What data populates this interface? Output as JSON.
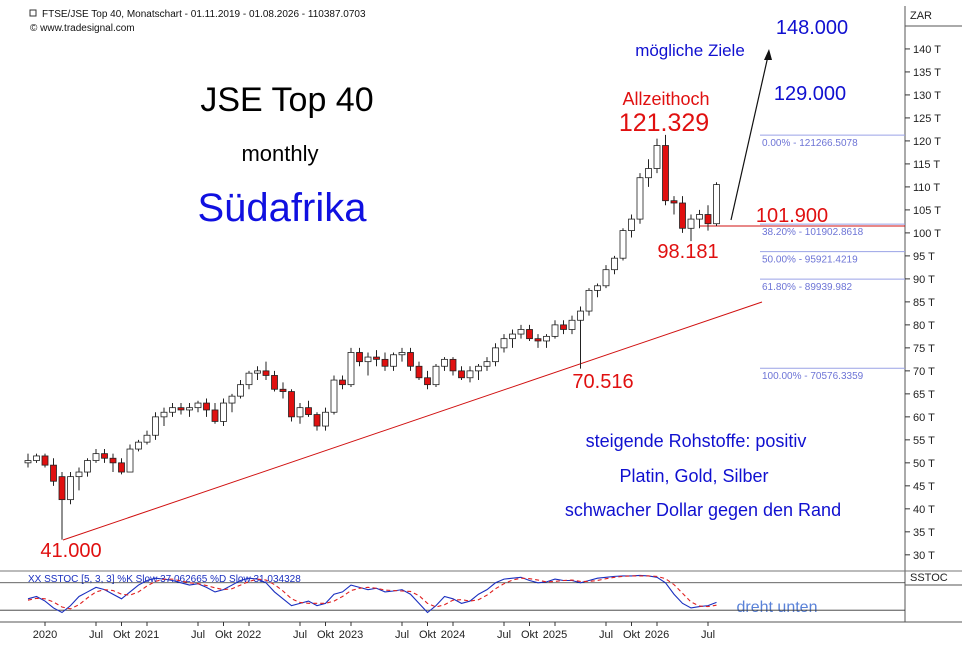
{
  "chart_data": {
    "type": "candlestick",
    "title": "FTSE/JSE Top 40, Monatschart - 01.11.2019 - 01.08.2026 - 110387.0703",
    "source": "© www.tradesignal.com",
    "y_axis_label": "ZAR",
    "categories": [
      null,
      null,
      "2020",
      null,
      null,
      null,
      null,
      null,
      "Jul",
      null,
      null,
      "Okt",
      null,
      null,
      "2021",
      null,
      null,
      null,
      null,
      null,
      "Jul",
      null,
      null,
      "Okt",
      null,
      null,
      "2022",
      null,
      null,
      null,
      null,
      null,
      "Jul",
      null,
      null,
      "Okt",
      null,
      null,
      "2023",
      null,
      null,
      null,
      null,
      null,
      "Jul",
      null,
      null,
      "Okt",
      null,
      null,
      "2024",
      null,
      null,
      null,
      null,
      null,
      "Jul",
      null,
      null,
      "Okt",
      null,
      null,
      "2025",
      null,
      null,
      null,
      null,
      null,
      "Jul",
      null,
      null,
      "Okt",
      null,
      null,
      "2026",
      null,
      null,
      null,
      null,
      null,
      "Jul",
      null
    ],
    "open": [
      50,
      50.5,
      51.5,
      49.5,
      47,
      42,
      47,
      48,
      50.5,
      52,
      51,
      50,
      48,
      53,
      54.5,
      56,
      60,
      61,
      62,
      61.5,
      62,
      63,
      61.5,
      59,
      63,
      64.5,
      67,
      69.5,
      70,
      69,
      66,
      65.5,
      60,
      62,
      60.5,
      58,
      61,
      68,
      67,
      74,
      72,
      73,
      72.5,
      71,
      73.5,
      74,
      71,
      68.5,
      67,
      71,
      72.5,
      70,
      68.5,
      70,
      71,
      72,
      75,
      77,
      78,
      79,
      77,
      76.5,
      77.5,
      80,
      79,
      81,
      83,
      87.5,
      88.5,
      92,
      94.5,
      100.5,
      103,
      112,
      114,
      119,
      107,
      106.5,
      101,
      103,
      104,
      102
    ],
    "high": [
      52,
      52,
      52,
      51,
      48,
      48,
      49,
      51,
      53,
      53,
      52,
      51,
      54,
      55,
      57,
      61,
      62,
      63,
      63,
      63,
      63.5,
      64,
      63,
      64,
      65,
      68,
      70,
      71,
      72,
      70,
      67.5,
      66,
      63,
      63.5,
      61,
      62,
      69,
      69,
      75,
      75,
      74,
      74.5,
      74,
      74,
      75,
      75,
      72,
      70,
      71.5,
      73,
      73,
      71,
      71,
      71.5,
      73,
      76,
      78,
      79,
      80,
      80,
      78,
      78,
      81,
      81,
      82,
      84,
      88,
      89,
      93,
      95,
      101,
      104,
      113,
      116,
      120.5,
      121.3,
      108,
      108,
      104,
      105,
      106,
      111
    ],
    "low": [
      49,
      50,
      49,
      45,
      33.3,
      41,
      44,
      47,
      50,
      50,
      48,
      47.5,
      48,
      52.5,
      54,
      55,
      58,
      60,
      60.5,
      60,
      61,
      60,
      58.5,
      58,
      61,
      64,
      66,
      68,
      68,
      65.5,
      64,
      59,
      58.5,
      60,
      57,
      57,
      60.5,
      66,
      66.5,
      71,
      69,
      71,
      70,
      70,
      72,
      70,
      68,
      66,
      66.5,
      70,
      69,
      68,
      67.5,
      68,
      70,
      71,
      74,
      75,
      77,
      76.5,
      75,
      75,
      77,
      78,
      78,
      70.5,
      82,
      86,
      88,
      91,
      94,
      99,
      102,
      110,
      113,
      106,
      104,
      100,
      98.2,
      101,
      100.5,
      101.5
    ],
    "close": [
      50.5,
      51.5,
      49.5,
      46,
      42,
      47,
      48,
      50.5,
      52,
      51,
      50,
      48,
      53,
      54.5,
      56,
      60,
      61,
      62,
      61.5,
      62,
      63,
      61.5,
      59,
      63,
      64.5,
      67,
      69.5,
      70,
      69,
      66,
      65.5,
      60,
      62,
      60.5,
      58,
      61,
      68,
      67,
      74,
      72,
      73,
      72.5,
      71,
      73.5,
      74,
      71,
      68.5,
      67,
      71,
      72.5,
      70,
      68.5,
      70,
      71,
      72,
      75,
      77,
      78,
      79,
      77,
      76.5,
      77.5,
      80,
      79,
      81,
      83,
      87.5,
      88.5,
      92,
      94.5,
      100.5,
      103,
      112,
      114,
      119,
      107,
      106.5,
      101,
      103,
      104,
      102,
      110.5
    ],
    "up_color": "#ffffff",
    "down_color": "#e01010",
    "ylim": [
      26.7,
      148.9
    ],
    "yticks": [
      {
        "value": 30,
        "label": "30 T"
      },
      {
        "value": 35,
        "label": "35 T"
      },
      {
        "value": 40,
        "label": "40 T"
      },
      {
        "value": 45,
        "label": "45 T"
      },
      {
        "value": 50,
        "label": "50 T"
      },
      {
        "value": 55,
        "label": "55 T"
      },
      {
        "value": 60,
        "label": "60 T"
      },
      {
        "value": 65,
        "label": "65 T"
      },
      {
        "value": 70,
        "label": "70 T"
      },
      {
        "value": 75,
        "label": "75 T"
      },
      {
        "value": 80,
        "label": "80 T"
      },
      {
        "value": 85,
        "label": "85 T"
      },
      {
        "value": 90,
        "label": "90 T"
      },
      {
        "value": 95,
        "label": "95 T"
      },
      {
        "value": 100,
        "label": "100 T"
      },
      {
        "value": 105,
        "label": "105 T"
      },
      {
        "value": 110,
        "label": "110 T"
      },
      {
        "value": 115,
        "label": "115 T"
      },
      {
        "value": 120,
        "label": "120 T"
      },
      {
        "value": 125,
        "label": "125 T"
      },
      {
        "value": 130,
        "label": "130 T"
      },
      {
        "value": 135,
        "label": "135 T"
      },
      {
        "value": 140,
        "label": "140 T"
      }
    ],
    "fibonacci": [
      {
        "value": 121.2665078,
        "label": "0.00% - 121266.5078"
      },
      {
        "value": 101.9028618,
        "label": "38.20% - 101902.8618"
      },
      {
        "value": 95.9214219,
        "label": "50.00% - 95921.4219"
      },
      {
        "value": 89.939982,
        "label": "61.80% - 89939.982"
      },
      {
        "value": 70.5763359,
        "label": "100.00% - 70576.3359"
      }
    ],
    "fib_color": "#9aa2e6",
    "annotations": [
      "JSE Top 40",
      "monthly",
      "Südafrika",
      "mögliche Ziele",
      "148.000",
      "129.000",
      "Allzeithoch",
      "121.329",
      "101.900",
      "98.181",
      "70.516",
      "41.000",
      "steigende Rohstoffe: positiv",
      "Platin, Gold, Silber",
      "schwacher Dollar gegen den Rand",
      "dreht unten"
    ],
    "stochastic": {
      "title": "XX SSTOC [5, 3, 3] %K Slow 37.062665 %D Slow 31.034328",
      "axis_label": "SSTOC",
      "ylim": [
        -3.6,
        101.4
      ],
      "levels": [
        20,
        80
      ],
      "series": [
        {
          "color": "#1a2fbf",
          "dashed": false,
          "values": [
            45,
            50,
            40,
            25,
            15,
            30,
            50,
            60,
            70,
            65,
            55,
            45,
            60,
            75,
            85,
            90,
            88,
            85,
            80,
            75,
            78,
            70,
            60,
            65,
            75,
            85,
            90,
            88,
            80,
            60,
            45,
            30,
            35,
            40,
            30,
            35,
            55,
            60,
            75,
            70,
            65,
            68,
            60,
            62,
            65,
            55,
            35,
            15,
            30,
            50,
            45,
            35,
            40,
            55,
            65,
            80,
            88,
            90,
            92,
            85,
            80,
            82,
            88,
            85,
            85,
            80,
            85,
            90,
            92,
            94,
            95,
            95,
            96,
            95,
            92,
            80,
            55,
            35,
            25,
            28,
            30,
            37.062665
          ]
        },
        {
          "color": "#e02020",
          "dashed": true,
          "values": [
            42,
            46,
            45,
            38,
            27,
            23,
            32,
            47,
            60,
            65,
            63,
            55,
            53,
            60,
            73,
            83,
            88,
            88,
            84,
            80,
            78,
            74,
            69,
            65,
            67,
            75,
            83,
            88,
            86,
            76,
            62,
            45,
            37,
            35,
            35,
            35,
            40,
            50,
            63,
            68,
            70,
            68,
            64,
            63,
            62,
            61,
            52,
            35,
            27,
            32,
            42,
            43,
            40,
            43,
            53,
            67,
            78,
            86,
            90,
            89,
            86,
            82,
            83,
            85,
            86,
            83,
            83,
            85,
            89,
            92,
            94,
            95,
            95,
            95,
            94,
            89,
            76,
            57,
            38,
            29,
            28,
            31.034328
          ]
        }
      ]
    }
  }
}
